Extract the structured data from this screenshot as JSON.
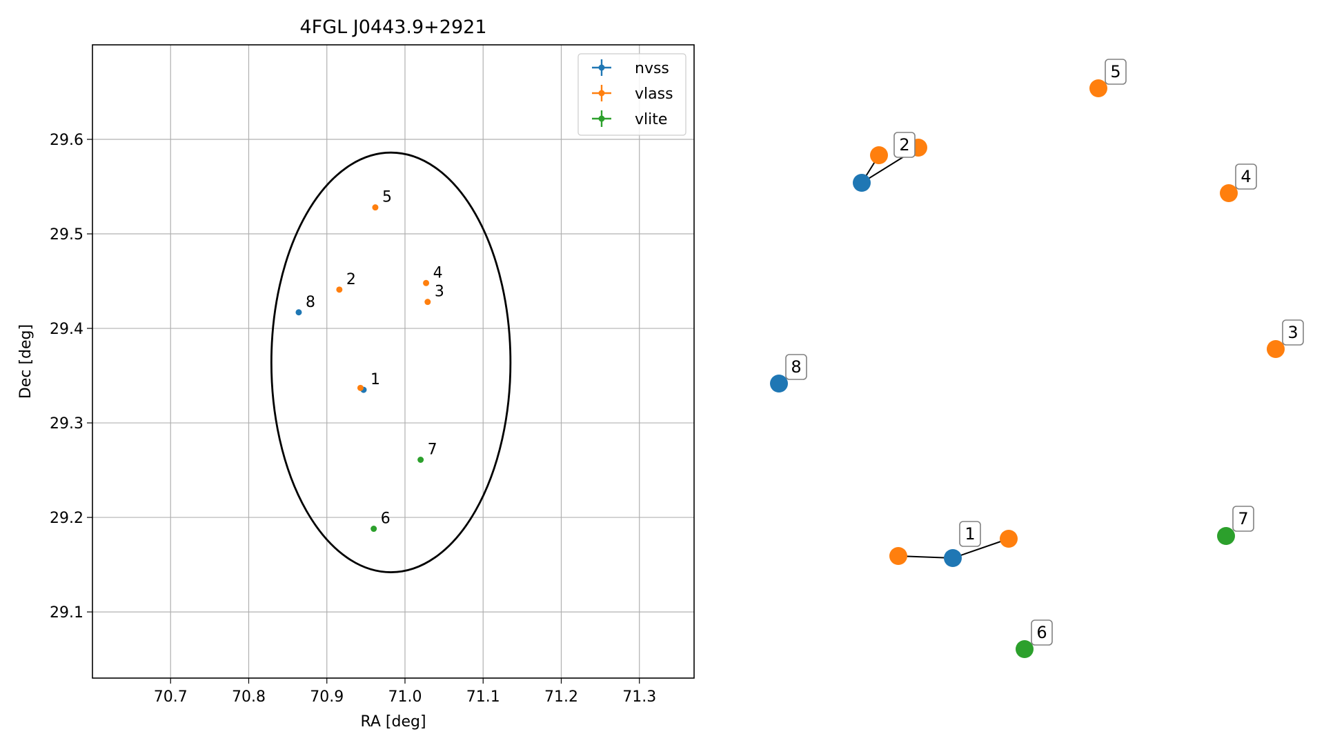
{
  "chart_data": [
    {
      "type": "scatter",
      "title": "4FGL J0443.9+2921",
      "xlabel": "RA [deg]",
      "ylabel": "Dec [deg]",
      "xlim": [
        70.6,
        71.37
      ],
      "ylim": [
        29.03,
        29.7
      ],
      "xticks": [
        "70.7",
        "70.8",
        "70.9",
        "71.0",
        "71.1",
        "71.2",
        "71.3"
      ],
      "yticks": [
        "29.1",
        "29.2",
        "29.3",
        "29.4",
        "29.5",
        "29.6"
      ],
      "grid": true,
      "legend": "top-right",
      "series": [
        {
          "name": "nvss",
          "color": "#1f77b4",
          "points": [
            {
              "x": 70.947,
              "y": 29.335,
              "label": "1"
            },
            {
              "x": 70.864,
              "y": 29.417,
              "label": "8"
            }
          ]
        },
        {
          "name": "vlass",
          "color": "#ff7f0e",
          "points": [
            {
              "x": 70.943,
              "y": 29.337,
              "label": "1"
            },
            {
              "x": 70.916,
              "y": 29.441,
              "label": "2"
            },
            {
              "x": 71.029,
              "y": 29.428,
              "label": "3"
            },
            {
              "x": 71.027,
              "y": 29.448,
              "label": "4"
            },
            {
              "x": 70.962,
              "y": 29.528,
              "label": "5"
            }
          ]
        },
        {
          "name": "vlite",
          "color": "#2ca02c",
          "points": [
            {
              "x": 70.96,
              "y": 29.188,
              "label": "6"
            },
            {
              "x": 71.02,
              "y": 29.261,
              "label": "7"
            }
          ]
        }
      ],
      "ellipse": {
        "center_x": 70.982,
        "center_y": 29.364,
        "semi_axis_x": 0.153,
        "semi_axis_y": 0.222,
        "color": "#000000"
      }
    },
    {
      "type": "network",
      "nodes": [
        {
          "id": "nvss-2",
          "label": "2",
          "color": "#1f77b4"
        },
        {
          "id": "vlass-2a",
          "label": "",
          "color": "#ff7f0e"
        },
        {
          "id": "vlass-2b",
          "label": "",
          "color": "#ff7f0e"
        },
        {
          "id": "vlass-5",
          "label": "5",
          "color": "#ff7f0e"
        },
        {
          "id": "vlass-4",
          "label": "4",
          "color": "#ff7f0e"
        },
        {
          "id": "vlass-3",
          "label": "3",
          "color": "#ff7f0e"
        },
        {
          "id": "nvss-8",
          "label": "8",
          "color": "#1f77b4"
        },
        {
          "id": "vlass-1a",
          "label": "",
          "color": "#ff7f0e"
        },
        {
          "id": "nvss-1",
          "label": "1",
          "color": "#1f77b4"
        },
        {
          "id": "vlass-1b",
          "label": "",
          "color": "#ff7f0e"
        },
        {
          "id": "vlite-7",
          "label": "7",
          "color": "#2ca02c"
        },
        {
          "id": "vlite-6",
          "label": "6",
          "color": "#2ca02c"
        }
      ],
      "edges": [
        [
          "nvss-2",
          "vlass-2a"
        ],
        [
          "nvss-2",
          "vlass-2b"
        ],
        [
          "vlass-1a",
          "nvss-1"
        ],
        [
          "nvss-1",
          "vlass-1b"
        ]
      ]
    }
  ]
}
